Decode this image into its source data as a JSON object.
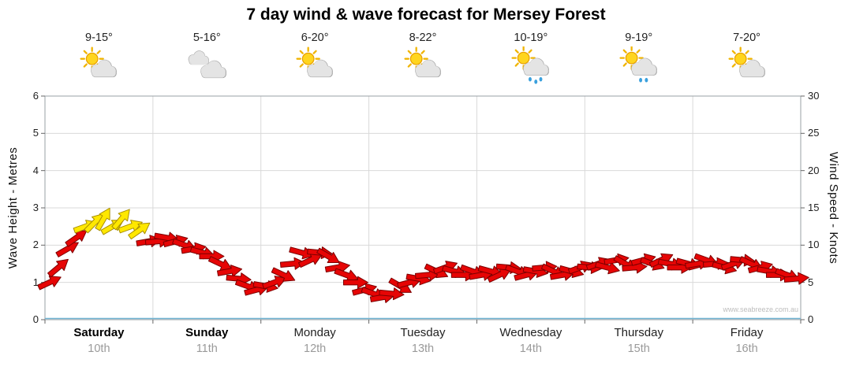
{
  "title": "7 day wind & wave forecast for Mersey Forest",
  "watermark": "www.seabreeze.com.au",
  "left_axis": {
    "label": "Wave Height - Metres",
    "ticks": [
      0,
      1,
      2,
      3,
      4,
      5,
      6
    ]
  },
  "right_axis": {
    "label": "Wind Speed - Knots",
    "ticks": [
      0,
      5,
      10,
      15,
      20,
      25,
      30
    ]
  },
  "days": [
    {
      "name": "Saturday",
      "date": "10th",
      "temp": "9-15°",
      "icon": "sun-cloud",
      "bold": true
    },
    {
      "name": "Sunday",
      "date": "11th",
      "temp": "5-16°",
      "icon": "cloud",
      "bold": true
    },
    {
      "name": "Monday",
      "date": "12th",
      "temp": "6-20°",
      "icon": "sun-cloud",
      "bold": false
    },
    {
      "name": "Tuesday",
      "date": "13th",
      "temp": "8-22°",
      "icon": "sun-cloud",
      "bold": false
    },
    {
      "name": "Wednesday",
      "date": "14th",
      "temp": "10-19°",
      "icon": "sun-cloud-showers",
      "bold": false
    },
    {
      "name": "Thursday",
      "date": "15th",
      "temp": "9-19°",
      "icon": "sun-cloud-light-rain",
      "bold": false
    },
    {
      "name": "Friday",
      "date": "16th",
      "temp": "7-20°",
      "icon": "sun-cloud",
      "bold": false
    }
  ],
  "chart_data": {
    "type": "wind-arrows",
    "categories": [
      "Saturday",
      "Sunday",
      "Monday",
      "Tuesday",
      "Wednesday",
      "Thursday",
      "Friday"
    ],
    "x_unit": "hours",
    "sample_interval_hours": 2,
    "ylim_wave_metres": [
      0,
      6
    ],
    "ylim_wind_knots": [
      0,
      30
    ],
    "color_threshold_knots": 12,
    "colors": {
      "light_wind_arrow": "#e60505",
      "moderate_wind_arrow": "#ffe800",
      "grid": "#d9d9d9",
      "frame": "#9aa0a6",
      "baseline": "#6fb3d2"
    },
    "wind_speed_knots": [
      5,
      7,
      9.5,
      11,
      12.5,
      13,
      13.5,
      12.5,
      13.5,
      12.5,
      12,
      10.5,
      10.5,
      11,
      10.5,
      10,
      9.5,
      9,
      8.5,
      7.5,
      6.5,
      5.5,
      4.5,
      4,
      4.5,
      5,
      6,
      7.5,
      9,
      8,
      9,
      8.5,
      7,
      6,
      5,
      4,
      3.5,
      3,
      3.5,
      4.5,
      5,
      5.5,
      6,
      6.5,
      7,
      6.5,
      6,
      6.5,
      6,
      6.5,
      6,
      7,
      6.5,
      6,
      6.5,
      7,
      6.5,
      6,
      6.5,
      7,
      7,
      7.5,
      7,
      8,
      7.5,
      7,
      8,
      7.5,
      8,
      7.5,
      7,
      7.5,
      7.5,
      8,
      7.5,
      7,
      7.5,
      8,
      7.5,
      7,
      6.5,
      6,
      6,
      5.5
    ],
    "wind_dir_deg": [
      25,
      40,
      30,
      35,
      20,
      45,
      60,
      30,
      50,
      20,
      35,
      10,
      5,
      -10,
      15,
      -20,
      10,
      -15,
      0,
      -25,
      10,
      -5,
      -20,
      15,
      -10,
      20,
      -25,
      5,
      -15,
      25,
      -5,
      -30,
      10,
      -20,
      0,
      15,
      -20,
      10,
      -5,
      -30,
      15,
      -10,
      5,
      -25,
      20,
      -15,
      0,
      -20,
      10,
      -15,
      25,
      -5,
      -20,
      15,
      -10,
      5,
      -25,
      10,
      -15,
      20,
      -5,
      20,
      -15,
      10,
      -30,
      5,
      15,
      -20,
      25,
      -10,
      0,
      -15,
      10,
      -20,
      5,
      -15,
      20,
      -5,
      -25,
      15,
      -10,
      0,
      -20,
      5
    ]
  }
}
